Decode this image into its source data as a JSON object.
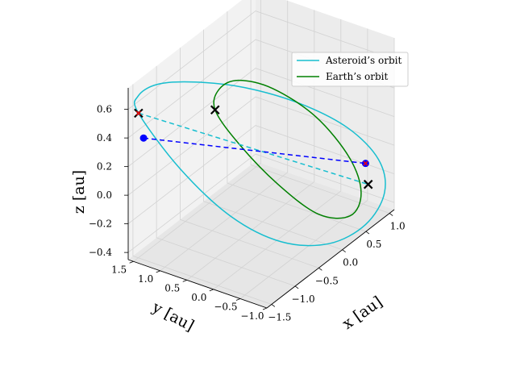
{
  "chart_data": {
    "type": "line",
    "projection": "3d",
    "legend_position": "top-right",
    "grid": true,
    "axes": {
      "x": {
        "label": "x [au]",
        "range": [
          -1.6,
          1.1
        ],
        "ticks": [
          "−1.5",
          "−1.0",
          "−0.5",
          "0.0",
          "0.5",
          "1.0"
        ],
        "tick_values": [
          -1.5,
          -1.0,
          -0.5,
          0.0,
          0.5,
          1.0
        ]
      },
      "y": {
        "label": "y [au]",
        "range": [
          -1.0,
          1.6
        ],
        "ticks": [
          "−1.0",
          "−0.5",
          "0.0",
          "0.5",
          "1.0",
          "1.5"
        ],
        "tick_values": [
          -1.0,
          -0.5,
          0.0,
          0.5,
          1.0,
          1.5
        ]
      },
      "z": {
        "label": "z [au]",
        "range": [
          -0.45,
          0.75
        ],
        "ticks": [
          "−0.4",
          "−0.2",
          "0.0",
          "0.2",
          "0.4",
          "0.6"
        ],
        "tick_values": [
          -0.4,
          -0.2,
          0.0,
          0.2,
          0.4,
          0.6
        ]
      }
    },
    "series": [
      {
        "name": "Asteroid’s orbit",
        "color": "#17becf",
        "style": "solid",
        "x": [
          -1.55,
          -1.45,
          -1.15,
          -0.7,
          -0.15,
          0.4,
          0.85,
          1.05,
          0.95,
          0.55,
          0.0,
          -0.55,
          -1.0,
          -1.35,
          -1.55
        ],
        "y": [
          1.45,
          1.55,
          1.45,
          1.15,
          0.7,
          0.15,
          -0.35,
          -0.75,
          -0.95,
          -0.95,
          -0.75,
          -0.35,
          0.2,
          0.85,
          1.45
        ],
        "z": [
          0.58,
          0.66,
          0.68,
          0.62,
          0.5,
          0.32,
          0.1,
          -0.12,
          -0.3,
          -0.42,
          -0.44,
          -0.34,
          -0.12,
          0.22,
          0.58
        ]
      },
      {
        "name": "Earth’s orbit",
        "color": "#008000",
        "style": "solid",
        "x": [
          -0.55,
          -0.35,
          0.0,
          0.45,
          0.85,
          1.0,
          0.85,
          0.45,
          0.0,
          -0.35,
          -0.55,
          -0.55
        ],
        "y": [
          0.9,
          1.0,
          0.95,
          0.7,
          0.25,
          -0.25,
          -0.6,
          -0.75,
          -0.55,
          -0.1,
          0.45,
          0.9
        ],
        "z": [
          0.42,
          0.5,
          0.48,
          0.34,
          0.1,
          -0.16,
          -0.32,
          -0.36,
          -0.26,
          -0.02,
          0.24,
          0.42
        ]
      },
      {
        "name": "",
        "color": "#17becf",
        "style": "dashed",
        "x": [
          -1.55,
          1.0
        ],
        "y": [
          1.45,
          -0.6
        ],
        "z": [
          0.58,
          -0.3
        ]
      },
      {
        "name": "",
        "color": "#0000ff",
        "style": "dashed",
        "x": [
          -1.5,
          1.0
        ],
        "y": [
          1.4,
          -0.55
        ],
        "z": [
          0.4,
          -0.16
        ]
      }
    ],
    "markers": [
      {
        "kind": "x",
        "color": "#000000",
        "x": -1.55,
        "y": 1.45,
        "z": 0.58
      },
      {
        "kind": "x",
        "color": "#000000",
        "x": -0.55,
        "y": 0.9,
        "z": 0.42
      },
      {
        "kind": "x",
        "color": "#000000",
        "x": 1.0,
        "y": -0.6,
        "z": -0.3
      },
      {
        "kind": "dot",
        "color": "#0000ff",
        "x": -1.5,
        "y": 1.4,
        "z": 0.4
      },
      {
        "kind": "dot",
        "color": "#0000ff",
        "x": 1.0,
        "y": -0.55,
        "z": -0.16
      },
      {
        "kind": "cross-small",
        "color": "#ff0000",
        "x": -1.55,
        "y": 1.45,
        "z": 0.58
      },
      {
        "kind": "cross-small",
        "color": "#ff0000",
        "x": 1.0,
        "y": -0.55,
        "z": -0.16
      }
    ]
  }
}
